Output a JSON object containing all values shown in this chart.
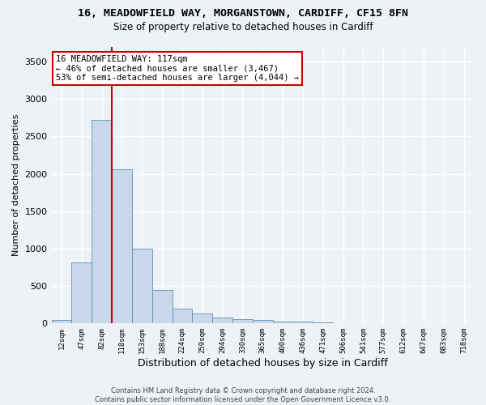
{
  "title_line1": "16, MEADOWFIELD WAY, MORGANSTOWN, CARDIFF, CF15 8FN",
  "title_line2": "Size of property relative to detached houses in Cardiff",
  "xlabel": "Distribution of detached houses by size in Cardiff",
  "ylabel": "Number of detached properties",
  "footer_line1": "Contains HM Land Registry data © Crown copyright and database right 2024.",
  "footer_line2": "Contains public sector information licensed under the Open Government Licence v3.0.",
  "annotation_line1": "16 MEADOWFIELD WAY: 117sqm",
  "annotation_line2": "← 46% of detached houses are smaller (3,467)",
  "annotation_line3": "53% of semi-detached houses are larger (4,044) →",
  "bar_color": "#c8d8ea",
  "bar_edge_color": "#6090b0",
  "vline_color": "#cc0000",
  "vline_x_index": 2.5,
  "categories": [
    "12sqm",
    "47sqm",
    "82sqm",
    "118sqm",
    "153sqm",
    "188sqm",
    "224sqm",
    "259sqm",
    "294sqm",
    "330sqm",
    "365sqm",
    "400sqm",
    "436sqm",
    "471sqm",
    "506sqm",
    "541sqm",
    "577sqm",
    "612sqm",
    "647sqm",
    "683sqm",
    "718sqm"
  ],
  "values": [
    50,
    820,
    2720,
    2060,
    1000,
    450,
    200,
    135,
    80,
    55,
    50,
    30,
    25,
    10,
    0,
    0,
    0,
    0,
    0,
    0,
    0
  ],
  "ylim": [
    0,
    3700
  ],
  "yticks": [
    0,
    500,
    1000,
    1500,
    2000,
    2500,
    3000,
    3500
  ],
  "background_color": "#eef2f7",
  "grid_color": "#ffffff",
  "annotation_box_color": "#ffffff",
  "annotation_box_edge": "#cc0000"
}
